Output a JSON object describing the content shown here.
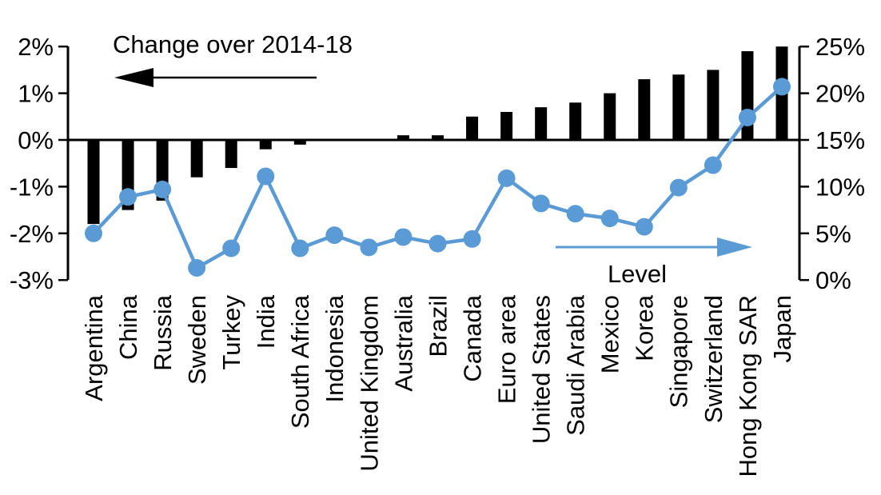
{
  "annotations": {
    "left_series_label": "Change over 2014-18",
    "right_series_label": "Level"
  },
  "colors": {
    "bar": "#000000",
    "line": "#5B9BD5",
    "background": "#FFFFFF"
  },
  "chart_data": {
    "type": "bar",
    "subtype": "dual-axis bar + line combo",
    "title": "",
    "categories": [
      "Argentina",
      "China",
      "Russia",
      "Sweden",
      "Turkey",
      "India",
      "South Africa",
      "Indonesia",
      "United Kingdom",
      "Australia",
      "Brazil",
      "Canada",
      "Euro area",
      "United States",
      "Saudi Arabia",
      "Mexico",
      "Korea",
      "Singapore",
      "Switzerland",
      "Hong Kong SAR",
      "Japan"
    ],
    "series": [
      {
        "name": "Change over 2014-18",
        "type": "bar",
        "axis": "left",
        "color": "#000000",
        "values": [
          -1.8,
          -1.5,
          -1.3,
          -0.8,
          -0.6,
          -0.2,
          -0.1,
          0.0,
          0.0,
          0.1,
          0.1,
          0.5,
          0.6,
          0.7,
          0.8,
          1.0,
          1.3,
          1.4,
          1.5,
          1.9,
          2.0
        ]
      },
      {
        "name": "Level",
        "type": "line",
        "axis": "right",
        "color": "#5B9BD5",
        "values": [
          5.0,
          8.9,
          9.7,
          1.3,
          3.4,
          11.1,
          3.4,
          4.8,
          3.5,
          4.6,
          3.9,
          4.4,
          10.9,
          8.2,
          7.1,
          6.6,
          5.7,
          9.9,
          12.3,
          17.4,
          20.7
        ]
      }
    ],
    "left_axis": {
      "tick_values": [
        2,
        1,
        0,
        -1,
        -2,
        -3
      ],
      "tick_labels": [
        "2%",
        "1%",
        "0%",
        "-1%",
        "-2%",
        "-3%"
      ],
      "range": [
        -3,
        2
      ]
    },
    "right_axis": {
      "tick_values": [
        25,
        20,
        15,
        10,
        5,
        0
      ],
      "tick_labels": [
        "25%",
        "20%",
        "15%",
        "10%",
        "5%",
        "0%"
      ],
      "range": [
        0,
        25
      ]
    },
    "grid": false,
    "legend_position": "in-plot annotations with arrows",
    "annotations": [
      "Change over 2014-18",
      "Level"
    ]
  }
}
